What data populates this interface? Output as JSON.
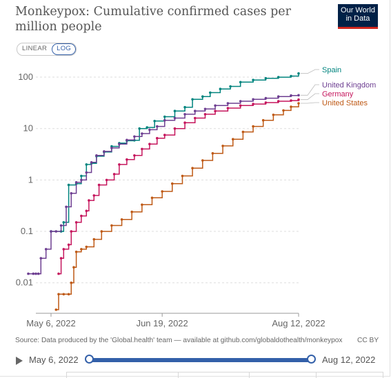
{
  "title": "Monkeypox: Cumulative confirmed cases per million people",
  "logo": {
    "line1": "Our World",
    "line2": "in Data"
  },
  "scale_toggle": {
    "linear": "LINEAR",
    "log": "LOG",
    "active": "LOG"
  },
  "source": "Source: Data produced by the 'Global.health' team — available at github.com/globaldothealth/monkeypox",
  "license": "CC BY",
  "timeline": {
    "start": "May 6, 2022",
    "end": "Aug 12, 2022"
  },
  "colors": {
    "spain": "#00847e",
    "uk": "#6d3e91",
    "germany": "#c5155c",
    "us": "#be5915",
    "grid": "#dddddd",
    "axis": "#999999"
  },
  "chart_data": {
    "type": "line",
    "title": "Monkeypox: Cumulative confirmed cases per million people",
    "x_axis": {
      "start": "2022-05-01",
      "end": "2022-08-12",
      "ticks": [
        "May 6, 2022",
        "Jun 19, 2022",
        "Aug 12, 2022"
      ]
    },
    "y_axis": {
      "scale": "log",
      "ticks": [
        "0.01",
        "0.1",
        "1",
        "10",
        "100"
      ],
      "range": [
        0.0028,
        180
      ]
    },
    "grid": true,
    "legend": "right, labels at line ends",
    "series": [
      {
        "name": "Spain",
        "color_key": "spain",
        "points": [
          [
            "2022-05-06",
            0.1
          ],
          [
            "2022-05-10",
            0.1
          ],
          [
            "2022-05-11",
            0.15
          ],
          [
            "2022-05-13",
            0.8
          ],
          [
            "2022-05-16",
            0.85
          ],
          [
            "2022-05-18",
            1.2
          ],
          [
            "2022-05-20",
            2.0
          ],
          [
            "2022-05-22",
            2.1
          ],
          [
            "2022-05-24",
            2.9
          ],
          [
            "2022-05-27",
            3.5
          ],
          [
            "2022-05-30",
            4.5
          ],
          [
            "2022-06-02",
            5.2
          ],
          [
            "2022-06-05",
            5.8
          ],
          [
            "2022-06-08",
            5.9
          ],
          [
            "2022-06-10",
            10.0
          ],
          [
            "2022-06-13",
            10.5
          ],
          [
            "2022-06-16",
            14.0
          ],
          [
            "2022-06-20",
            17.0
          ],
          [
            "2022-06-24",
            22.0
          ],
          [
            "2022-06-28",
            26.0
          ],
          [
            "2022-07-01",
            37.0
          ],
          [
            "2022-07-05",
            42.0
          ],
          [
            "2022-07-08",
            50.0
          ],
          [
            "2022-07-12",
            59.0
          ],
          [
            "2022-07-16",
            66.0
          ],
          [
            "2022-07-20",
            80.0
          ],
          [
            "2022-07-25",
            88.0
          ],
          [
            "2022-07-30",
            95.0
          ],
          [
            "2022-08-04",
            100.0
          ],
          [
            "2022-08-09",
            105.0
          ],
          [
            "2022-08-12",
            118.0
          ]
        ]
      },
      {
        "name": "United Kingdom",
        "color_key": "uk",
        "points": [
          [
            "2022-04-27",
            0.015
          ],
          [
            "2022-04-29",
            0.015
          ],
          [
            "2022-04-30",
            0.015
          ],
          [
            "2022-05-01",
            0.015
          ],
          [
            "2022-05-02",
            0.03
          ],
          [
            "2022-05-04",
            0.045
          ],
          [
            "2022-05-06",
            0.1
          ],
          [
            "2022-05-08",
            0.1
          ],
          [
            "2022-05-10",
            0.13
          ],
          [
            "2022-05-12",
            0.3
          ],
          [
            "2022-05-14",
            0.55
          ],
          [
            "2022-05-16",
            0.9
          ],
          [
            "2022-05-18",
            1.0
          ],
          [
            "2022-05-20",
            1.4
          ],
          [
            "2022-05-22",
            2.2
          ],
          [
            "2022-05-24",
            3.0
          ],
          [
            "2022-05-27",
            3.6
          ],
          [
            "2022-05-30",
            4.2
          ],
          [
            "2022-06-02",
            5.0
          ],
          [
            "2022-06-05",
            6.0
          ],
          [
            "2022-06-08",
            7.0
          ],
          [
            "2022-06-11",
            8.0
          ],
          [
            "2022-06-14",
            9.5
          ],
          [
            "2022-06-17",
            11.0
          ],
          [
            "2022-06-20",
            14.5
          ],
          [
            "2022-06-24",
            16.0
          ],
          [
            "2022-06-28",
            19.0
          ],
          [
            "2022-07-02",
            22.0
          ],
          [
            "2022-07-06",
            24.0
          ],
          [
            "2022-07-10",
            28.0
          ],
          [
            "2022-07-15",
            31.0
          ],
          [
            "2022-07-20",
            34.0
          ],
          [
            "2022-07-25",
            37.0
          ],
          [
            "2022-07-30",
            39.0
          ],
          [
            "2022-08-04",
            42.0
          ],
          [
            "2022-08-09",
            44.0
          ],
          [
            "2022-08-12",
            44.5
          ]
        ]
      },
      {
        "name": "Germany",
        "color_key": "germany",
        "points": [
          [
            "2022-05-09",
            0.015
          ],
          [
            "2022-05-10",
            0.03
          ],
          [
            "2022-05-11",
            0.045
          ],
          [
            "2022-05-13",
            0.055
          ],
          [
            "2022-05-14",
            0.1
          ],
          [
            "2022-05-16",
            0.15
          ],
          [
            "2022-05-18",
            0.2
          ],
          [
            "2022-05-20",
            0.25
          ],
          [
            "2022-05-21",
            0.4
          ],
          [
            "2022-05-23",
            0.5
          ],
          [
            "2022-05-25",
            0.8
          ],
          [
            "2022-05-28",
            1.0
          ],
          [
            "2022-05-31",
            1.3
          ],
          [
            "2022-06-02",
            2.0
          ],
          [
            "2022-06-05",
            2.5
          ],
          [
            "2022-06-08",
            3.0
          ],
          [
            "2022-06-11",
            4.0
          ],
          [
            "2022-06-14",
            5.0
          ],
          [
            "2022-06-17",
            6.5
          ],
          [
            "2022-06-20",
            7.5
          ],
          [
            "2022-06-24",
            10.0
          ],
          [
            "2022-06-28",
            13.0
          ],
          [
            "2022-07-02",
            16.0
          ],
          [
            "2022-07-06",
            19.0
          ],
          [
            "2022-07-10",
            22.0
          ],
          [
            "2022-07-15",
            25.0
          ],
          [
            "2022-07-20",
            28.0
          ],
          [
            "2022-07-25",
            30.0
          ],
          [
            "2022-07-30",
            32.0
          ],
          [
            "2022-08-04",
            34.0
          ],
          [
            "2022-08-09",
            35.0
          ],
          [
            "2022-08-12",
            36.5
          ]
        ]
      },
      {
        "name": "United States",
        "color_key": "us",
        "points": [
          [
            "2022-05-08",
            0.003
          ],
          [
            "2022-05-09",
            0.006
          ],
          [
            "2022-05-11",
            0.006
          ],
          [
            "2022-05-13",
            0.006
          ],
          [
            "2022-05-14",
            0.01
          ],
          [
            "2022-05-15",
            0.02
          ],
          [
            "2022-05-16",
            0.04
          ],
          [
            "2022-05-18",
            0.045
          ],
          [
            "2022-05-20",
            0.05
          ],
          [
            "2022-05-23",
            0.07
          ],
          [
            "2022-05-26",
            0.1
          ],
          [
            "2022-05-30",
            0.13
          ],
          [
            "2022-06-03",
            0.17
          ],
          [
            "2022-06-07",
            0.24
          ],
          [
            "2022-06-11",
            0.33
          ],
          [
            "2022-06-15",
            0.45
          ],
          [
            "2022-06-19",
            0.6
          ],
          [
            "2022-06-23",
            0.85
          ],
          [
            "2022-06-27",
            1.2
          ],
          [
            "2022-07-01",
            1.7
          ],
          [
            "2022-07-05",
            2.4
          ],
          [
            "2022-07-09",
            3.3
          ],
          [
            "2022-07-13",
            4.6
          ],
          [
            "2022-07-17",
            6.2
          ],
          [
            "2022-07-21",
            8.6
          ],
          [
            "2022-07-25",
            11.0
          ],
          [
            "2022-07-29",
            14.5
          ],
          [
            "2022-08-02",
            18.5
          ],
          [
            "2022-08-06",
            22.5
          ],
          [
            "2022-08-09",
            26.5
          ],
          [
            "2022-08-12",
            31.0
          ]
        ]
      }
    ]
  }
}
